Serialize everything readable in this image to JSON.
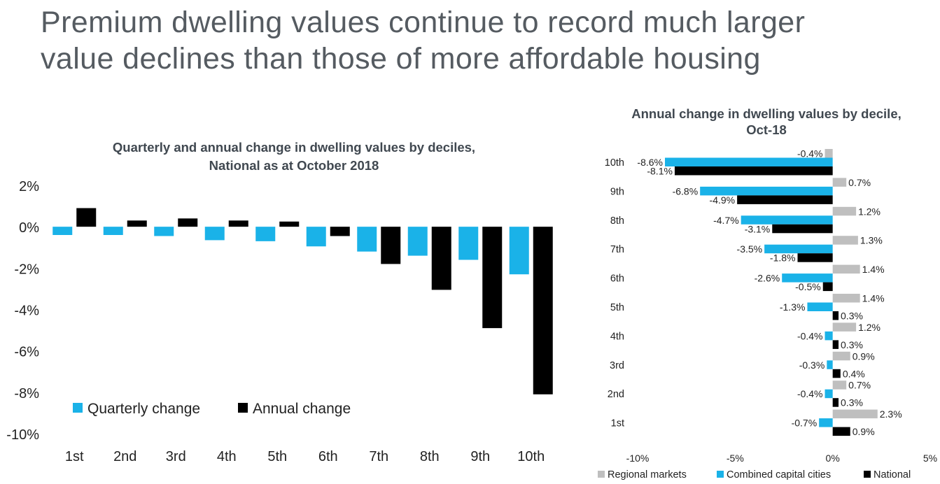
{
  "page": {
    "title_lines": [
      "Premium dwelling values continue to record much larger",
      "value declines than those of more affordable housing"
    ]
  },
  "colors": {
    "quarterly": "#1ab2e8",
    "annual": "#000000",
    "regional": "#bfbfbf",
    "capital": "#1ab2e8",
    "national": "#000000",
    "title_text": "#555b61"
  },
  "chart_data": [
    {
      "type": "bar",
      "title_lines": [
        "Quarterly and annual change in dwelling values by deciles,",
        "National as at October 2018"
      ],
      "categories": [
        "1st",
        "2nd",
        "3rd",
        "4th",
        "5th",
        "6th",
        "7th",
        "8th",
        "9th",
        "10th"
      ],
      "series": [
        {
          "name": "Quarterly change",
          "values": [
            -0.4,
            -0.4,
            -0.45,
            -0.65,
            -0.7,
            -0.95,
            -1.2,
            -1.4,
            -1.6,
            -2.3
          ]
        },
        {
          "name": "Annual change",
          "values": [
            0.9,
            0.3,
            0.4,
            0.3,
            0.25,
            -0.45,
            -1.8,
            -3.05,
            -4.9,
            -8.1
          ]
        }
      ],
      "yticks": [
        "2%",
        "0%",
        "-2%",
        "-4%",
        "-6%",
        "-8%",
        "-10%"
      ],
      "ylim": [
        -10,
        2
      ],
      "legend_position": "bottom-left"
    },
    {
      "type": "bar",
      "orientation": "horizontal",
      "title_lines": [
        "Annual change in dwelling values by decile,",
        "Oct-18"
      ],
      "categories": [
        "10th",
        "9th",
        "8th",
        "7th",
        "6th",
        "5th",
        "4th",
        "3rd",
        "2nd",
        "1st"
      ],
      "series": [
        {
          "name": "Regional markets",
          "values": [
            -0.4,
            0.7,
            1.2,
            1.3,
            1.4,
            1.4,
            1.2,
            0.9,
            0.7,
            2.3
          ],
          "labels": [
            "-0.4%",
            "0.7%",
            "1.2%",
            "1.3%",
            "1.4%",
            "1.4%",
            "1.2%",
            "0.9%",
            "0.7%",
            "2.3%"
          ]
        },
        {
          "name": "Combined capital cities",
          "values": [
            -8.6,
            -6.8,
            -4.7,
            -3.5,
            -2.6,
            -1.3,
            -0.4,
            -0.3,
            -0.4,
            -0.7
          ],
          "labels": [
            "-8.6%",
            "-6.8%",
            "-4.7%",
            "-3.5%",
            "-2.6%",
            "-1.3%",
            "-0.4%",
            "-0.3%",
            "-0.4%",
            "-0.7%"
          ]
        },
        {
          "name": "National",
          "values": [
            -8.1,
            -4.9,
            -3.1,
            -1.8,
            -0.5,
            0.3,
            0.3,
            0.4,
            0.3,
            0.9
          ],
          "labels": [
            "-8.1%",
            "-4.9%",
            "-3.1%",
            "-1.8%",
            "-0.5%",
            "0.3%",
            "0.3%",
            "0.4%",
            "0.3%",
            "0.9%"
          ]
        }
      ],
      "xticks": [
        "-10%",
        "-5%",
        "0%",
        "5%"
      ],
      "xlim": [
        -10,
        5
      ],
      "legend_position": "bottom"
    }
  ]
}
